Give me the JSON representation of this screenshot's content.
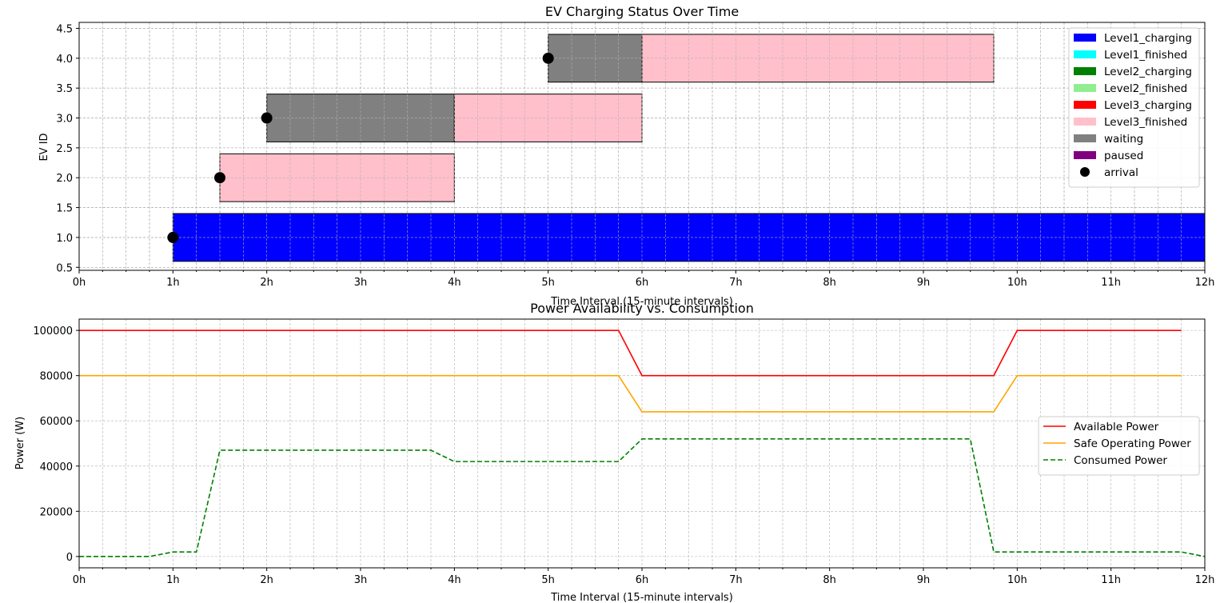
{
  "chart_data": [
    {
      "type": "gantt",
      "title": "EV Charging Status Over Time",
      "xlabel": "Time Interval (15-minute intervals)",
      "ylabel": "EV ID",
      "xlim": [
        0,
        12
      ],
      "ylim": [
        0.45,
        4.6
      ],
      "x_tick_labels": [
        "0h",
        "1h",
        "2h",
        "3h",
        "4h",
        "5h",
        "6h",
        "7h",
        "8h",
        "9h",
        "10h",
        "11h",
        "12h"
      ],
      "y_ticks": [
        0.5,
        1.0,
        1.5,
        2.0,
        2.5,
        3.0,
        3.5,
        4.0,
        4.5
      ],
      "y_tick_labels": [
        "0.5",
        "1.0",
        "1.5",
        "2.0",
        "2.5",
        "3.0",
        "3.5",
        "4.0",
        "4.5"
      ],
      "grid": true,
      "legend_position": "top-right",
      "states": [
        {
          "name": "Level1_charging",
          "color": "#0000ff"
        },
        {
          "name": "Level1_finished",
          "color": "#00ffff"
        },
        {
          "name": "Level2_charging",
          "color": "#008000"
        },
        {
          "name": "Level2_finished",
          "color": "#90ee90"
        },
        {
          "name": "Level3_charging",
          "color": "#ff0000"
        },
        {
          "name": "Level3_finished",
          "color": "#ffc0cb"
        },
        {
          "name": "waiting",
          "color": "#808080"
        },
        {
          "name": "paused",
          "color": "#800080"
        }
      ],
      "arrival_label": "arrival",
      "bars": [
        {
          "ev": 1,
          "start": 1.0,
          "end": 12.0,
          "state": "Level1_charging"
        },
        {
          "ev": 2,
          "start": 1.5,
          "end": 4.0,
          "state": "Level3_finished"
        },
        {
          "ev": 3,
          "start": 2.0,
          "end": 4.0,
          "state": "waiting"
        },
        {
          "ev": 3,
          "start": 4.0,
          "end": 6.0,
          "state": "Level3_finished"
        },
        {
          "ev": 4,
          "start": 5.0,
          "end": 6.0,
          "state": "waiting"
        },
        {
          "ev": 4,
          "start": 6.0,
          "end": 9.75,
          "state": "Level3_finished"
        }
      ],
      "arrivals": [
        {
          "ev": 1,
          "time": 1.0
        },
        {
          "ev": 2,
          "time": 1.5
        },
        {
          "ev": 3,
          "time": 2.0
        },
        {
          "ev": 4,
          "time": 5.0
        }
      ]
    },
    {
      "type": "line",
      "title": "Power Availability vs. Consumption",
      "xlabel": "Time Interval (15-minute intervals)",
      "ylabel": "Power (W)",
      "xlim": [
        0,
        12
      ],
      "ylim": [
        -5000,
        105000
      ],
      "x_tick_labels": [
        "0h",
        "1h",
        "2h",
        "3h",
        "4h",
        "5h",
        "6h",
        "7h",
        "8h",
        "9h",
        "10h",
        "11h",
        "12h"
      ],
      "y_ticks": [
        0,
        20000,
        40000,
        60000,
        80000,
        100000
      ],
      "y_tick_labels": [
        "0",
        "20000",
        "40000",
        "60000",
        "80000",
        "100000"
      ],
      "grid": true,
      "legend_position": "center-right",
      "series": [
        {
          "name": "Available Power",
          "color": "#ff0000",
          "dash": "solid",
          "points": [
            [
              0,
              100000
            ],
            [
              5.75,
              100000
            ],
            [
              6.0,
              80000
            ],
            [
              9.75,
              80000
            ],
            [
              10.0,
              100000
            ],
            [
              11.75,
              100000
            ]
          ]
        },
        {
          "name": "Safe Operating Power",
          "color": "#ffa500",
          "dash": "solid",
          "points": [
            [
              0,
              80000
            ],
            [
              5.75,
              80000
            ],
            [
              6.0,
              64000
            ],
            [
              9.75,
              64000
            ],
            [
              10.0,
              80000
            ],
            [
              11.75,
              80000
            ]
          ]
        },
        {
          "name": "Consumed Power",
          "color": "#008000",
          "dash": "dashed",
          "points": [
            [
              0,
              0
            ],
            [
              0.75,
              0
            ],
            [
              1.0,
              2000
            ],
            [
              1.25,
              2000
            ],
            [
              1.5,
              47000
            ],
            [
              3.75,
              47000
            ],
            [
              4.0,
              42000
            ],
            [
              5.75,
              42000
            ],
            [
              6.0,
              52000
            ],
            [
              9.5,
              52000
            ],
            [
              9.75,
              2000
            ],
            [
              11.75,
              2000
            ],
            [
              12.0,
              0
            ]
          ]
        }
      ]
    }
  ]
}
